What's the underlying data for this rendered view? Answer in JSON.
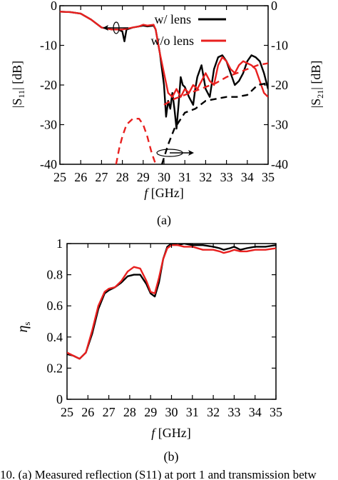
{
  "chart_data": [
    {
      "type": "line",
      "panel_label": "(a)",
      "xlabel": "f [GHz]",
      "ylabel_left": "|S11| [dB]",
      "ylabel_right": "|S21| [dB]",
      "xlim": [
        25,
        35
      ],
      "ylim": [
        -40,
        0
      ],
      "xticks": [
        25,
        26,
        27,
        28,
        29,
        30,
        31,
        32,
        33,
        34,
        35
      ],
      "yticks": [
        -40,
        -30,
        -20,
        -10,
        0
      ],
      "grid": false,
      "legend": {
        "placement": "top-right",
        "entries": [
          "w/ lens",
          "w/o lens"
        ]
      },
      "series": [
        {
          "name": "w/ lens",
          "quantity": "S11",
          "color": "#000000",
          "style": "solid",
          "x": [
            25,
            25.5,
            26,
            26.5,
            27,
            27.5,
            27.8,
            28.0,
            28.1,
            28.2,
            28.5,
            28.8,
            29.0,
            29.2,
            29.5,
            29.6,
            29.8,
            30.0,
            30.1,
            30.2,
            30.3,
            30.4,
            30.5,
            30.6,
            30.7,
            30.8,
            30.9,
            31.0,
            31.2,
            31.4,
            31.5,
            31.6,
            31.8,
            32.0,
            32.2,
            32.4,
            32.6,
            32.8,
            33.0,
            33.2,
            33.4,
            33.6,
            33.8,
            34.0,
            34.2,
            34.4,
            34.6,
            34.8,
            35.0
          ],
          "y": [
            -1.5,
            -1.6,
            -2,
            -3.5,
            -5.5,
            -6,
            -6,
            -6.5,
            -9,
            -6,
            -5.5,
            -5.2,
            -5,
            -5.2,
            -5,
            -6,
            -12,
            -20,
            -28,
            -24,
            -26,
            -22,
            -26,
            -31,
            -25,
            -18,
            -20,
            -20.5,
            -23,
            -25,
            -21,
            -18,
            -15,
            -21,
            -23,
            -16,
            -13,
            -12.5,
            -14,
            -17,
            -20,
            -19,
            -17,
            -14,
            -12.5,
            -13,
            -14,
            -17,
            -21
          ]
        },
        {
          "name": "w/o lens",
          "quantity": "S11",
          "color": "#e8201f",
          "style": "solid",
          "x": [
            25,
            25.5,
            26,
            26.5,
            27,
            27.5,
            28,
            28.5,
            28.8,
            29.0,
            29.2,
            29.5,
            29.6,
            29.8,
            30.0,
            30.2,
            30.4,
            30.6,
            30.8,
            31.0,
            31.2,
            31.4,
            31.6,
            31.8,
            32.0,
            32.2,
            32.4,
            32.6,
            32.8,
            33.0,
            33.2,
            33.4,
            33.6,
            33.8,
            34.0,
            34.2,
            34.4,
            34.6,
            34.8,
            35.0
          ],
          "y": [
            -1.5,
            -1.6,
            -2,
            -3.5,
            -5.5,
            -6,
            -6,
            -5.5,
            -5.2,
            -4.8,
            -5,
            -4.8,
            -6,
            -12,
            -17,
            -22,
            -23,
            -21,
            -23,
            -21,
            -22,
            -20,
            -21,
            -19,
            -17,
            -19,
            -20,
            -15,
            -13,
            -14,
            -16,
            -17,
            -15,
            -14,
            -14.5,
            -15,
            -16,
            -19,
            -22,
            -23
          ]
        },
        {
          "name": "w/ lens",
          "quantity": "S21",
          "color": "#000000",
          "style": "dashed",
          "x": [
            29.9,
            30.2,
            30.5,
            31.0,
            31.5,
            32.0,
            32.5,
            33.0,
            33.5,
            34.0,
            34.5,
            35.0
          ],
          "y": [
            -40,
            -35,
            -31,
            -27,
            -26,
            -24,
            -23.5,
            -23,
            -23,
            -22.5,
            -20,
            -19.5
          ]
        },
        {
          "name": "w/o lens",
          "quantity": "S21",
          "color": "#e8201f",
          "style": "dashed",
          "x": [
            27.7,
            27.85,
            28.0,
            28.2,
            28.5,
            28.8,
            29.0,
            29.2,
            29.4,
            29.6
          ],
          "y": [
            -40,
            -36,
            -33,
            -30,
            -28.5,
            -28.5,
            -30,
            -33,
            -37,
            -40
          ]
        },
        {
          "name": "w/o lens",
          "quantity": "S21",
          "color": "#e8201f",
          "style": "dashed",
          "x": [
            30.0,
            30.5,
            31.0,
            31.5,
            32.0,
            32.5,
            33.0,
            33.5,
            34.0,
            34.5,
            35.0
          ],
          "y": [
            -25,
            -23.5,
            -22.5,
            -21.5,
            -20.5,
            -19.5,
            -18,
            -17,
            -16,
            -15,
            -14.5
          ]
        }
      ]
    },
    {
      "type": "line",
      "panel_label": "(b)",
      "xlabel": "f [GHz]",
      "ylabel": "ηs",
      "xlim": [
        25,
        35
      ],
      "ylim": [
        0,
        1
      ],
      "xticks": [
        25,
        26,
        27,
        28,
        29,
        30,
        31,
        32,
        33,
        34,
        35
      ],
      "yticks": [
        0,
        0.2,
        0.4,
        0.6,
        0.8,
        1
      ],
      "grid": false,
      "series": [
        {
          "name": "w/ lens",
          "color": "#000000",
          "style": "solid",
          "x": [
            25,
            25.3,
            25.6,
            25.9,
            26.2,
            26.5,
            26.8,
            27.0,
            27.3,
            27.6,
            27.9,
            28.2,
            28.5,
            28.8,
            29.0,
            29.2,
            29.4,
            29.6,
            29.8,
            30.0,
            30.3,
            30.6,
            31.0,
            31.5,
            32.0,
            32.3,
            32.5,
            32.8,
            33.0,
            33.3,
            33.6,
            34.0,
            34.5,
            35.0
          ],
          "y": [
            0.29,
            0.28,
            0.26,
            0.3,
            0.42,
            0.58,
            0.68,
            0.7,
            0.72,
            0.75,
            0.79,
            0.8,
            0.8,
            0.74,
            0.68,
            0.66,
            0.75,
            0.9,
            0.98,
            1.0,
            0.99,
            1.0,
            0.99,
            0.99,
            0.98,
            0.97,
            0.96,
            0.97,
            0.98,
            0.96,
            0.97,
            0.98,
            0.98,
            0.99
          ]
        },
        {
          "name": "w/o lens",
          "color": "#e8201f",
          "style": "solid",
          "x": [
            25,
            25.3,
            25.6,
            25.9,
            26.2,
            26.5,
            26.8,
            27.0,
            27.3,
            27.6,
            27.9,
            28.2,
            28.5,
            28.8,
            29.0,
            29.2,
            29.4,
            29.6,
            29.8,
            30.0,
            30.3,
            30.6,
            31.0,
            31.5,
            32.0,
            32.3,
            32.5,
            32.8,
            33.0,
            33.3,
            33.6,
            34.0,
            34.5,
            35.0
          ],
          "y": [
            0.3,
            0.28,
            0.26,
            0.3,
            0.44,
            0.6,
            0.69,
            0.71,
            0.72,
            0.76,
            0.82,
            0.85,
            0.84,
            0.76,
            0.69,
            0.68,
            0.78,
            0.9,
            0.97,
            0.99,
            0.99,
            0.98,
            0.98,
            0.96,
            0.96,
            0.95,
            0.94,
            0.95,
            0.96,
            0.95,
            0.95,
            0.96,
            0.96,
            0.97
          ]
        }
      ]
    }
  ],
  "caption_fragment": "10.   (a) Measured reflection (S11) at port 1 and transmission betw"
}
